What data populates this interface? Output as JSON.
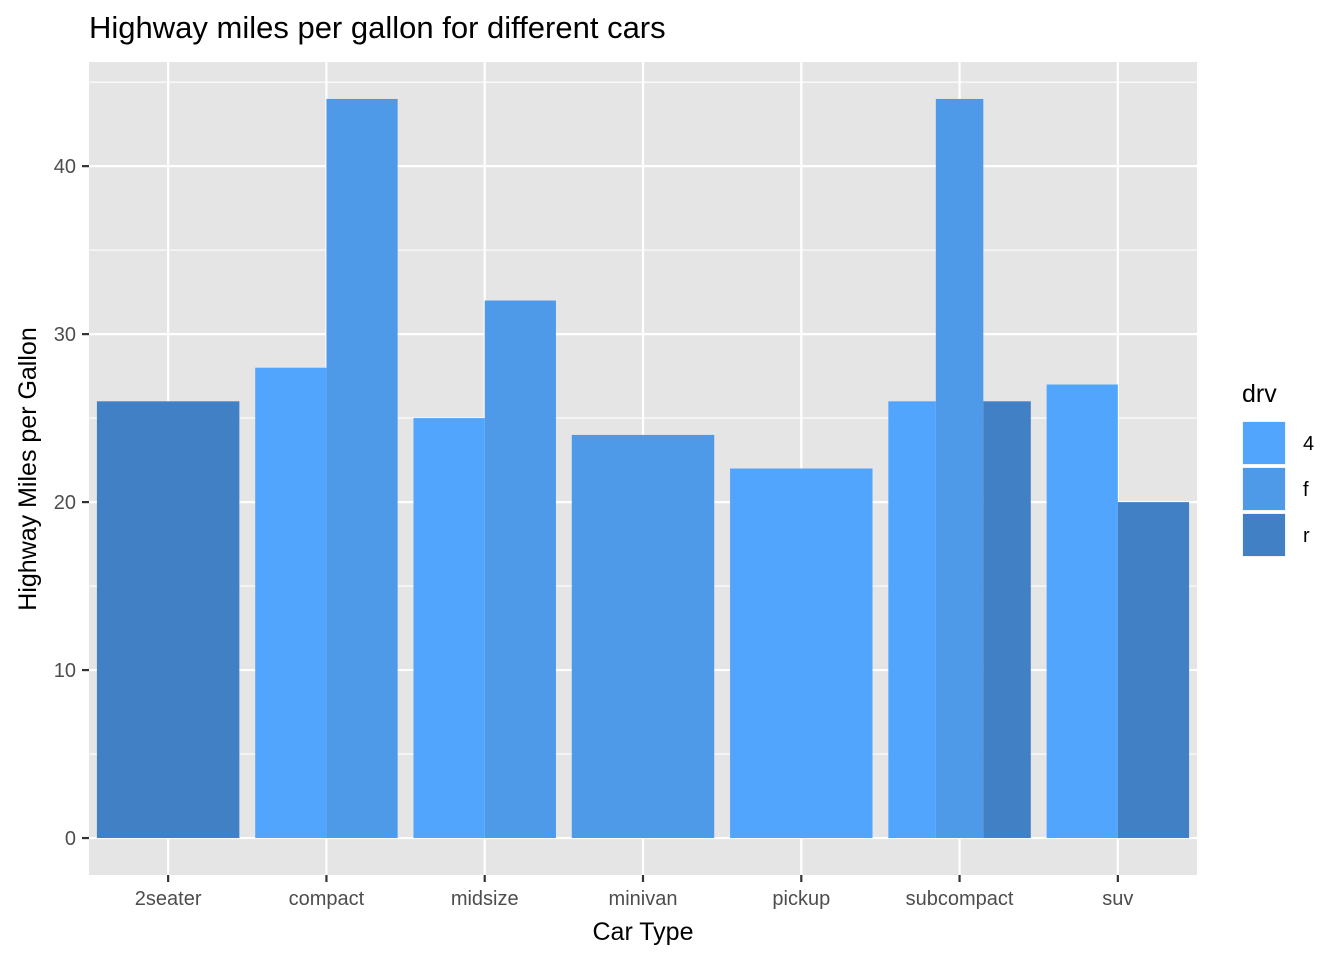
{
  "chart_data": {
    "type": "bar",
    "title": "Highway miles per gallon for different cars",
    "xlabel": "Car Type",
    "ylabel": "Highway Miles per Gallon",
    "ylim": [
      -2.2,
      46.2
    ],
    "yticks": [
      0,
      10,
      20,
      30,
      40
    ],
    "grid": true,
    "categories": [
      "2seater",
      "compact",
      "midsize",
      "minivan",
      "pickup",
      "subcompact",
      "suv"
    ],
    "legend": {
      "title": "drv",
      "position": "right",
      "entries": [
        {
          "label": "4",
          "color": "#52a5fd"
        },
        {
          "label": "f",
          "color": "#4f9ae8"
        },
        {
          "label": "r",
          "color": "#4180c4"
        }
      ]
    },
    "bars": [
      {
        "category": "2seater",
        "group": "r",
        "value": 26
      },
      {
        "category": "compact",
        "group": "4",
        "value": 28
      },
      {
        "category": "compact",
        "group": "f",
        "value": 44
      },
      {
        "category": "midsize",
        "group": "4",
        "value": 25
      },
      {
        "category": "midsize",
        "group": "f",
        "value": 32
      },
      {
        "category": "minivan",
        "group": "f",
        "value": 24
      },
      {
        "category": "pickup",
        "group": "4",
        "value": 22
      },
      {
        "category": "subcompact",
        "group": "4",
        "value": 26
      },
      {
        "category": "subcompact",
        "group": "f",
        "value": 44
      },
      {
        "category": "subcompact",
        "group": "r",
        "value": 26
      },
      {
        "category": "suv",
        "group": "4",
        "value": 27
      },
      {
        "category": "suv",
        "group": "r",
        "value": 20
      }
    ],
    "colors": {
      "panel": "#e5e5e5",
      "grid": "#ffffff",
      "tick": "#333333"
    }
  }
}
